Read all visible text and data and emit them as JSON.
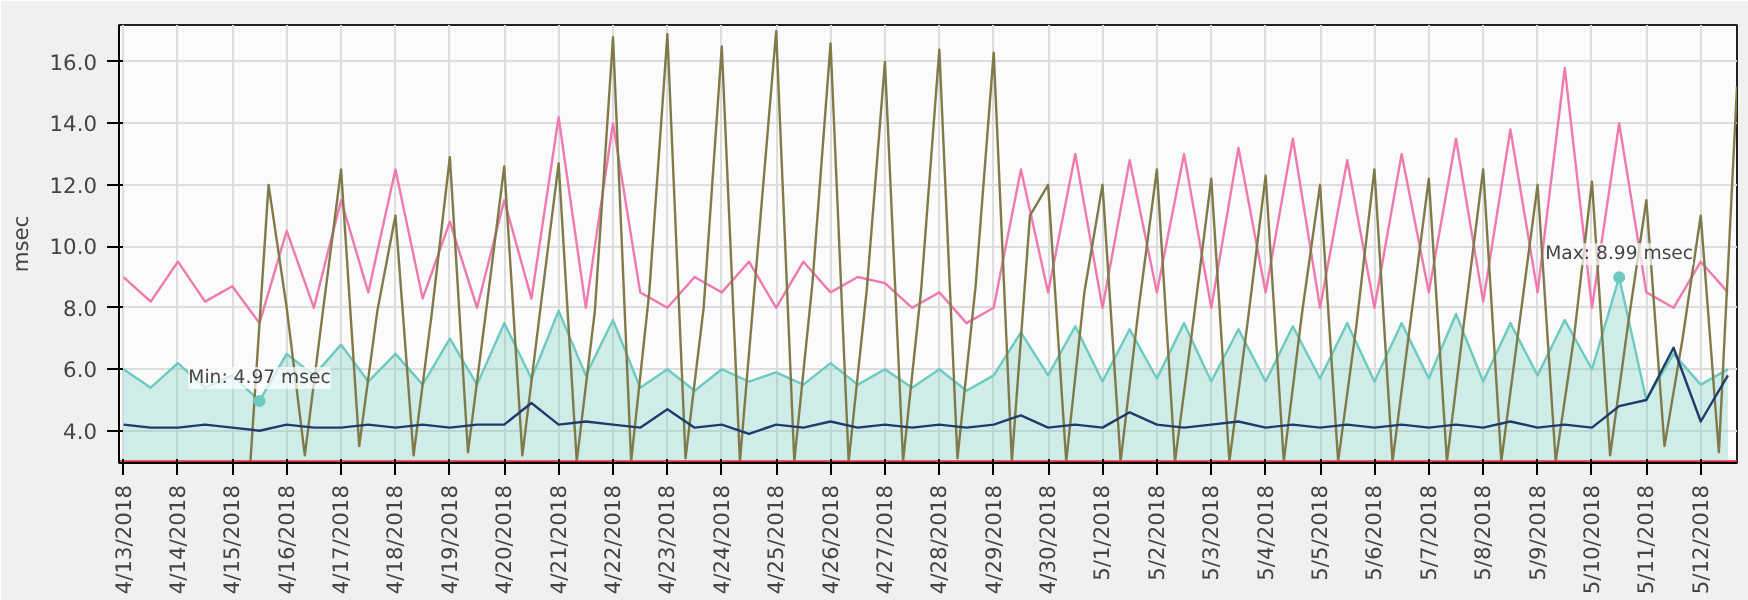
{
  "chart_data": {
    "type": "line",
    "ylabel": "msec",
    "grid": true,
    "xlim": [
      "2018-04-12T22:00",
      "2018-05-12T16:00"
    ],
    "ylim": [
      2.95,
      17.2
    ],
    "yticks": [
      {
        "value": 4,
        "label": "4.0"
      },
      {
        "value": 6,
        "label": "6.0"
      },
      {
        "value": 8,
        "label": "8.0"
      },
      {
        "value": 10,
        "label": "10.0"
      },
      {
        "value": 12,
        "label": "12.0"
      },
      {
        "value": 14,
        "label": "14.0"
      },
      {
        "value": 16,
        "label": "16.0"
      }
    ],
    "xticks": [
      {
        "value": "2018-04-13",
        "label": "4/13/2018"
      },
      {
        "value": "2018-04-14",
        "label": "4/14/2018"
      },
      {
        "value": "2018-04-15",
        "label": "4/15/2018"
      },
      {
        "value": "2018-04-16",
        "label": "4/16/2018"
      },
      {
        "value": "2018-04-17",
        "label": "4/17/2018"
      },
      {
        "value": "2018-04-18",
        "label": "4/18/2018"
      },
      {
        "value": "2018-04-19",
        "label": "4/19/2018"
      },
      {
        "value": "2018-04-20",
        "label": "4/20/2018"
      },
      {
        "value": "2018-04-21",
        "label": "4/21/2018"
      },
      {
        "value": "2018-04-22",
        "label": "4/22/2018"
      },
      {
        "value": "2018-04-23",
        "label": "4/23/2018"
      },
      {
        "value": "2018-04-24",
        "label": "4/24/2018"
      },
      {
        "value": "2018-04-25",
        "label": "4/25/2018"
      },
      {
        "value": "2018-04-26",
        "label": "4/26/2018"
      },
      {
        "value": "2018-04-27",
        "label": "4/27/2018"
      },
      {
        "value": "2018-04-28",
        "label": "4/28/2018"
      },
      {
        "value": "2018-04-29",
        "label": "4/29/2018"
      },
      {
        "value": "2018-04-30",
        "label": "4/30/2018"
      },
      {
        "value": "2018-05-01",
        "label": "5/1/2018"
      },
      {
        "value": "2018-05-02",
        "label": "5/2/2018"
      },
      {
        "value": "2018-05-03",
        "label": "5/3/2018"
      },
      {
        "value": "2018-05-04",
        "label": "5/4/2018"
      },
      {
        "value": "2018-05-05",
        "label": "5/5/2018"
      },
      {
        "value": "2018-05-06",
        "label": "5/6/2018"
      },
      {
        "value": "2018-05-07",
        "label": "5/7/2018"
      },
      {
        "value": "2018-05-08",
        "label": "5/8/2018"
      },
      {
        "value": "2018-05-09",
        "label": "5/9/2018"
      },
      {
        "value": "2018-05-10",
        "label": "5/10/2018"
      },
      {
        "value": "2018-05-11",
        "label": "5/11/2018"
      },
      {
        "value": "2018-05-12",
        "label": "5/12/2018"
      }
    ],
    "annotations": [
      {
        "text": "Min: 4.97 msec",
        "x": "2018-04-15T12:00",
        "y": 4.97
      },
      {
        "text": "Max: 8.99 msec",
        "x": "2018-05-10T12:00",
        "y": 8.99
      }
    ],
    "x": [
      "2018-04-13T00:00",
      "2018-04-13T12:00",
      "2018-04-14T00:00",
      "2018-04-14T12:00",
      "2018-04-15T00:00",
      "2018-04-15T12:00",
      "2018-04-16T00:00",
      "2018-04-16T12:00",
      "2018-04-17T00:00",
      "2018-04-17T12:00",
      "2018-04-18T00:00",
      "2018-04-18T12:00",
      "2018-04-19T00:00",
      "2018-04-19T12:00",
      "2018-04-20T00:00",
      "2018-04-20T12:00",
      "2018-04-21T00:00",
      "2018-04-21T12:00",
      "2018-04-22T00:00",
      "2018-04-22T12:00",
      "2018-04-23T00:00",
      "2018-04-23T12:00",
      "2018-04-24T00:00",
      "2018-04-24T12:00",
      "2018-04-25T00:00",
      "2018-04-25T12:00",
      "2018-04-26T00:00",
      "2018-04-26T12:00",
      "2018-04-27T00:00",
      "2018-04-27T12:00",
      "2018-04-28T00:00",
      "2018-04-28T12:00",
      "2018-04-29T00:00",
      "2018-04-29T12:00",
      "2018-04-30T00:00",
      "2018-04-30T12:00",
      "2018-05-01T00:00",
      "2018-05-01T12:00",
      "2018-05-02T00:00",
      "2018-05-02T12:00",
      "2018-05-03T00:00",
      "2018-05-03T12:00",
      "2018-05-04T00:00",
      "2018-05-04T12:00",
      "2018-05-05T00:00",
      "2018-05-05T12:00",
      "2018-05-06T00:00",
      "2018-05-06T12:00",
      "2018-05-07T00:00",
      "2018-05-07T12:00",
      "2018-05-08T00:00",
      "2018-05-08T12:00",
      "2018-05-09T00:00",
      "2018-05-09T12:00",
      "2018-05-10T00:00",
      "2018-05-10T12:00",
      "2018-05-11T00:00",
      "2018-05-11T12:00",
      "2018-05-12T00:00",
      "2018-05-12T12:00"
    ],
    "series": [
      {
        "type": "area",
        "color": "#6ccac0",
        "values": [
          6.0,
          5.4,
          6.2,
          5.4,
          5.8,
          4.97,
          6.5,
          5.8,
          6.8,
          5.6,
          6.5,
          5.5,
          7.0,
          5.5,
          7.5,
          5.7,
          7.9,
          5.8,
          7.6,
          5.4,
          6.0,
          5.3,
          6.0,
          5.6,
          5.9,
          5.5,
          6.2,
          5.5,
          6.0,
          5.4,
          6.0,
          5.3,
          5.8,
          7.2,
          5.8,
          7.4,
          5.6,
          7.3,
          5.7,
          7.5,
          5.6,
          7.3,
          5.6,
          7.4,
          5.7,
          7.5,
          5.6,
          7.5,
          5.7,
          7.8,
          5.6,
          7.5,
          5.8,
          7.6,
          6.0,
          8.99,
          5.0,
          6.5,
          5.5,
          6.0
        ]
      },
      {
        "color": "#f07ab0",
        "values": [
          9.0,
          8.2,
          9.5,
          8.2,
          8.7,
          7.5,
          10.5,
          8.0,
          11.5,
          8.5,
          12.5,
          8.3,
          10.8,
          8.0,
          11.5,
          8.3,
          14.2,
          8.0,
          14.0,
          8.5,
          8.0,
          9.0,
          8.5,
          9.5,
          8.0,
          9.5,
          8.5,
          9.0,
          8.8,
          8.0,
          8.5,
          7.5,
          8.0,
          12.5,
          8.5,
          13.0,
          8.0,
          12.8,
          8.5,
          13.0,
          8.0,
          13.2,
          8.5,
          13.5,
          8.0,
          12.8,
          8.0,
          13.0,
          8.5,
          13.5,
          8.2,
          13.8,
          8.5,
          15.8,
          8.0,
          14.0,
          8.5,
          8.0,
          9.5,
          8.5
        ]
      },
      {
        "color": "#7f7a4a",
        "x": [
          "2018-04-15T08:00",
          "2018-04-15T16:00",
          "2018-04-16T00:00",
          "2018-04-16T08:00",
          "2018-04-16T16:00",
          "2018-04-17T00:00",
          "2018-04-17T08:00",
          "2018-04-17T16:00",
          "2018-04-18T00:00",
          "2018-04-18T08:00",
          "2018-04-18T16:00",
          "2018-04-19T00:00",
          "2018-04-19T08:00",
          "2018-04-19T16:00",
          "2018-04-20T00:00",
          "2018-04-20T08:00",
          "2018-04-20T16:00",
          "2018-04-21T00:00",
          "2018-04-21T08:00",
          "2018-04-21T16:00",
          "2018-04-22T00:00",
          "2018-04-22T08:00",
          "2018-04-22T16:00",
          "2018-04-23T00:00",
          "2018-04-23T08:00",
          "2018-04-23T16:00",
          "2018-04-24T00:00",
          "2018-04-24T08:00",
          "2018-04-24T16:00",
          "2018-04-25T00:00",
          "2018-04-25T08:00",
          "2018-04-25T16:00",
          "2018-04-26T00:00",
          "2018-04-26T08:00",
          "2018-04-26T16:00",
          "2018-04-27T00:00",
          "2018-04-27T08:00",
          "2018-04-27T16:00",
          "2018-04-28T00:00",
          "2018-04-28T08:00",
          "2018-04-28T16:00",
          "2018-04-29T00:00",
          "2018-04-29T08:00",
          "2018-04-29T16:00",
          "2018-04-30T00:00",
          "2018-04-30T08:00",
          "2018-04-30T16:00",
          "2018-05-01T00:00",
          "2018-05-01T08:00",
          "2018-05-01T16:00",
          "2018-05-02T00:00",
          "2018-05-02T08:00",
          "2018-05-02T16:00",
          "2018-05-03T00:00",
          "2018-05-03T08:00",
          "2018-05-03T16:00",
          "2018-05-04T00:00",
          "2018-05-04T08:00",
          "2018-05-04T16:00",
          "2018-05-05T00:00",
          "2018-05-05T08:00",
          "2018-05-05T16:00",
          "2018-05-06T00:00",
          "2018-05-06T08:00",
          "2018-05-06T16:00",
          "2018-05-07T00:00",
          "2018-05-07T08:00",
          "2018-05-07T16:00",
          "2018-05-08T00:00",
          "2018-05-08T08:00",
          "2018-05-08T16:00",
          "2018-05-09T00:00",
          "2018-05-09T08:00",
          "2018-05-09T16:00",
          "2018-05-10T00:00",
          "2018-05-10T08:00",
          "2018-05-10T16:00",
          "2018-05-11T00:00",
          "2018-05-11T08:00",
          "2018-05-11T16:00",
          "2018-05-12T00:00",
          "2018-05-12T08:00",
          "2018-05-12T16:00"
        ],
        "values": [
          3.0,
          12.0,
          8.0,
          3.2,
          7.9,
          12.5,
          3.5,
          7.9,
          11.0,
          3.2,
          7.8,
          12.9,
          3.3,
          7.9,
          12.6,
          3.2,
          8.0,
          12.7,
          3.0,
          7.9,
          16.8,
          3.0,
          8.5,
          16.9,
          3.1,
          8.0,
          16.5,
          3.0,
          10.0,
          17.0,
          3.0,
          8.8,
          16.6,
          3.0,
          8.6,
          16.0,
          3.0,
          8.6,
          16.4,
          3.1,
          8.7,
          16.3,
          3.0,
          11.0,
          12.0,
          3.0,
          8.5,
          12.0,
          3.0,
          8.0,
          12.5,
          3.0,
          7.5,
          12.2,
          3.0,
          7.5,
          12.3,
          3.0,
          7.8,
          12.0,
          3.0,
          7.4,
          12.5,
          3.0,
          7.6,
          12.2,
          3.0,
          7.8,
          12.5,
          3.0,
          7.5,
          12.0,
          3.0,
          7.0,
          12.1,
          3.2,
          7.5,
          11.5,
          3.5,
          7.0,
          11.0,
          3.3,
          15.2
        ]
      },
      {
        "color": "#1f3b6b",
        "values": [
          4.2,
          4.1,
          4.1,
          4.2,
          4.1,
          4.0,
          4.2,
          4.1,
          4.1,
          4.2,
          4.1,
          4.2,
          4.1,
          4.2,
          4.2,
          4.9,
          4.2,
          4.3,
          4.2,
          4.1,
          4.7,
          4.1,
          4.2,
          3.9,
          4.2,
          4.1,
          4.3,
          4.1,
          4.2,
          4.1,
          4.2,
          4.1,
          4.2,
          4.5,
          4.1,
          4.2,
          4.1,
          4.6,
          4.2,
          4.1,
          4.2,
          4.3,
          4.1,
          4.2,
          4.1,
          4.2,
          4.1,
          4.2,
          4.1,
          4.2,
          4.1,
          4.3,
          4.1,
          4.2,
          4.1,
          4.8,
          5.0,
          6.7,
          4.3,
          5.8
        ]
      },
      {
        "color": "#e03030",
        "x": [
          "2018-04-12T22:00",
          "2018-05-12T16:00"
        ],
        "values": [
          3.0,
          3.0
        ]
      }
    ]
  }
}
